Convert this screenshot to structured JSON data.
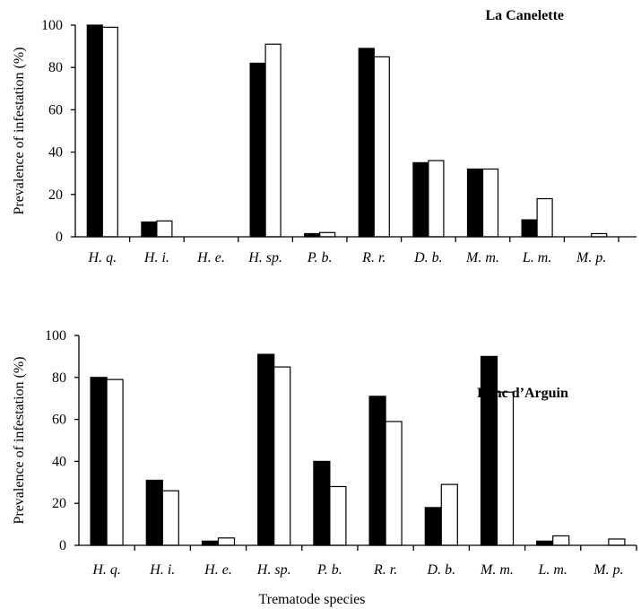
{
  "chart_data": [
    {
      "type": "bar",
      "title": "La Canelette",
      "ylabel": "Prevalence of infestation (%)",
      "xlabel": "",
      "ylim": [
        0,
        100
      ],
      "yticks": [
        "0",
        "20",
        "40",
        "60",
        "80",
        "100"
      ],
      "categories": [
        "H. q.",
        "H. i.",
        "H. e.",
        "H. sp.",
        "P. b.",
        "R. r.",
        "D. b.",
        "M. m.",
        "L. m.",
        "M. p."
      ],
      "series": [
        {
          "fill": "#000000",
          "values": [
            100,
            7,
            0,
            82,
            1.5,
            89,
            35,
            32,
            8,
            0
          ]
        },
        {
          "fill": "#ffffff",
          "values": [
            99,
            7.5,
            0,
            91,
            2,
            85,
            36,
            32,
            18,
            1.5
          ]
        }
      ],
      "legend": "none",
      "grid": false
    },
    {
      "type": "bar",
      "title": "Banc d’Arguin",
      "ylabel": "Prevalence of infestation (%)",
      "xlabel": "Trematode species",
      "ylim": [
        0,
        100
      ],
      "yticks": [
        "0",
        "20",
        "40",
        "60",
        "80",
        "100"
      ],
      "categories": [
        "H. q.",
        "H. i.",
        "H. e.",
        "H. sp.",
        "P. b.",
        "R. r.",
        "D. b.",
        "M. m.",
        "L. m.",
        "M. p."
      ],
      "series": [
        {
          "fill": "#000000",
          "values": [
            80,
            31,
            2,
            91,
            40,
            71,
            18,
            90,
            2,
            0
          ]
        },
        {
          "fill": "#ffffff",
          "values": [
            79,
            26,
            3.5,
            85,
            28,
            59,
            29,
            73,
            4.5,
            3
          ]
        }
      ],
      "legend": "none",
      "grid": false
    }
  ]
}
